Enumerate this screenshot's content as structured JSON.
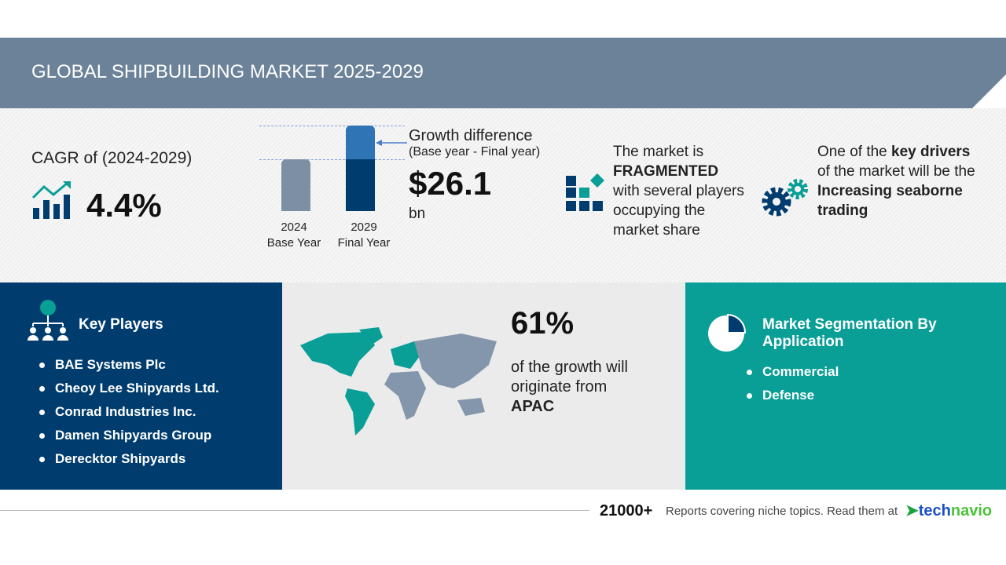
{
  "header": {
    "title": "GLOBAL SHIPBUILDING MARKET 2025-2029"
  },
  "cagr": {
    "label": "CAGR of (2024-2029)",
    "value": "4.4%",
    "icon": "growth-chart-icon"
  },
  "growth": {
    "bars": [
      {
        "year": "2024",
        "label": "Base Year"
      },
      {
        "year": "2029",
        "label": "Final Year"
      }
    ],
    "title": "Growth difference",
    "subtitle": "(Base year - Final year)",
    "value": "$26.1",
    "unit": "bn"
  },
  "market": {
    "line1": "The market is",
    "emphasis": "FRAGMENTED",
    "rest": "with several players occupying the market share",
    "icon": "blocks-icon"
  },
  "drivers": {
    "pre": "One of the ",
    "bold1": "key drivers",
    "mid": "of the market will be the",
    "bold2": "Increasing seaborne trading",
    "icon": "gears-icon"
  },
  "key_players": {
    "title": "Key Players",
    "items": [
      "BAE Systems Plc",
      "Cheoy Lee Shipyards Ltd.",
      "Conrad Industries Inc.",
      "Damen Shipyards Group",
      "Derecktor Shipyards"
    ]
  },
  "region": {
    "value": "61%",
    "text": "of the growth will originate from",
    "region": "APAC"
  },
  "segmentation": {
    "title": "Market Segmentation By Application",
    "items": [
      "Commercial",
      "Defense"
    ]
  },
  "footer": {
    "count": "21000+",
    "text": "Reports covering niche topics. Read them at",
    "brand1": "tech",
    "brand2": "navio"
  },
  "colors": {
    "header": "#6b8299",
    "navy": "#003d6e",
    "teal": "#099e96",
    "gray": "#ebebeb"
  }
}
